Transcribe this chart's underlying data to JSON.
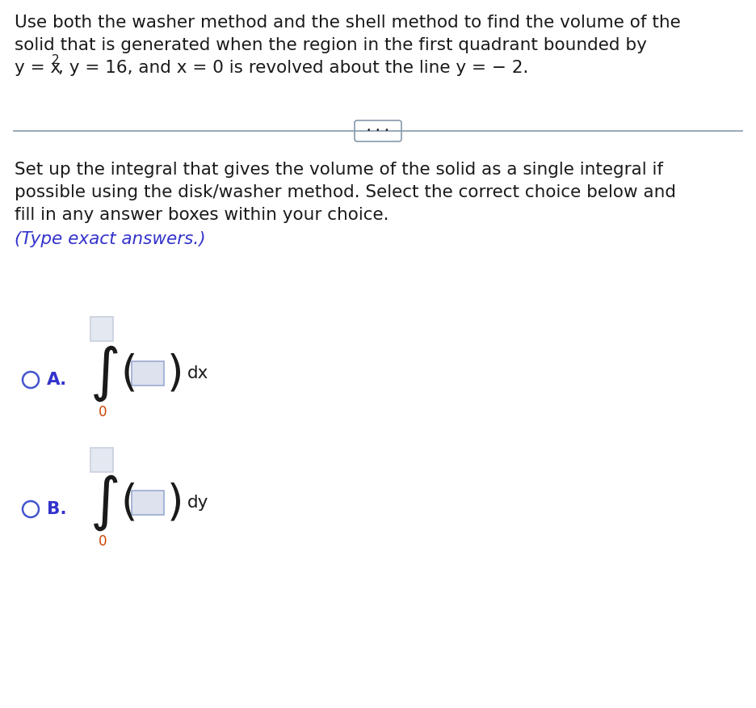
{
  "bg_color": "#ffffff",
  "text_color": "#1a1a1a",
  "blue_color": "#3333cc",
  "line_color": "#8899aa",
  "divider_color": "#8899aa",
  "p1_line1": "Use both the washer method and the shell method to find the volume of the",
  "p1_line2": "solid that is generated when the region in the first quadrant bounded by",
  "p1_line3a": "y = x",
  "p1_line3b": "2",
  "p1_line3c": ", y = 16, and x = 0 is revolved about the line y = − 2.",
  "p2_line1": "Set up the integral that gives the volume of the solid as a single integral if",
  "p2_line2": "possible using the disk/washer method. Select the correct choice below and",
  "p2_line3": "fill in any answer boxes within your choice.",
  "type_exact": "(Type exact answers.)",
  "label_A": "A.",
  "label_B": "B.",
  "dx": "dx",
  "dy": "dy",
  "zero": "0",
  "dots": "•  •  •",
  "main_fontsize": 15.5,
  "choice_fontsize": 15.5,
  "integral_fontsize": 52,
  "paren_fontsize": 38,
  "sub_fontsize": 12,
  "sup_fontsize": 11,
  "upper_box_color": "#c8d0e0",
  "upper_box_fill": "#e4e8f0",
  "inner_box_color": "#9aaacf",
  "inner_box_fill": "#dde2ee",
  "circle_color": "#4455cc"
}
